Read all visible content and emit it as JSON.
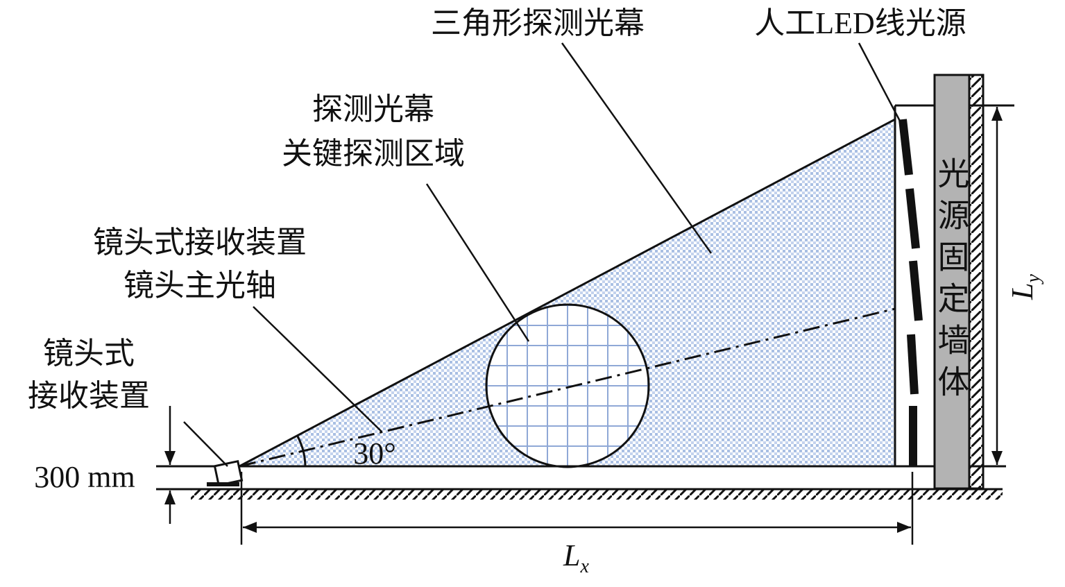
{
  "labels": {
    "triangle_curtain": "三角形探测光幕",
    "led_source": "人工LED线光源",
    "key_region": [
      "探测光幕",
      "关键探测区域"
    ],
    "optical_axis": [
      "镜头式接收装置",
      "镜头主光轴"
    ],
    "receiver": [
      "镜头式",
      "接收装置"
    ],
    "height": "300 mm",
    "angle": "30°",
    "lx": {
      "main": "L",
      "sub": "x"
    },
    "ly": {
      "main": "L",
      "sub": "y"
    },
    "wall": "光源固定墙体"
  }
}
